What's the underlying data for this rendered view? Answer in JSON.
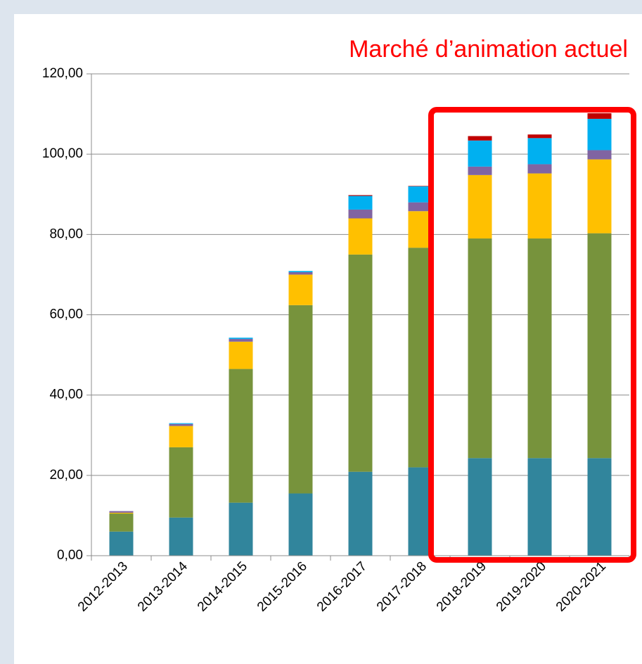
{
  "chart_data": {
    "type": "bar",
    "stacked": true,
    "title": "Marché d’animation actuel",
    "categories": [
      "2012-2013",
      "2013-2014",
      "2014-2015",
      "2015-2016",
      "2016-2017",
      "2017-2018",
      "2018-2019",
      "2019-2020",
      "2020-2021"
    ],
    "series": [
      {
        "color": "#31859c",
        "values": [
          6.0,
          9.5,
          13.2,
          15.5,
          20.9,
          22.0,
          24.3,
          24.3,
          24.3
        ]
      },
      {
        "color": "#77933c",
        "values": [
          4.5,
          17.5,
          33.3,
          46.9,
          54.1,
          54.7,
          54.7,
          54.7,
          56.0
        ]
      },
      {
        "color": "#ffc000",
        "values": [
          0.2,
          5.3,
          6.8,
          7.6,
          9.0,
          9.1,
          15.8,
          16.2,
          18.4
        ]
      },
      {
        "color": "#8064a2",
        "values": [
          0.4,
          0.5,
          0.7,
          0.6,
          2.2,
          2.2,
          2.1,
          2.3,
          2.3
        ]
      },
      {
        "color": "#00b0f0",
        "values": [
          0,
          0.2,
          0.3,
          0.3,
          3.4,
          4.0,
          6.5,
          6.5,
          7.8
        ]
      },
      {
        "color": "#c00000",
        "values": [
          0,
          0,
          0,
          0,
          0.2,
          0.1,
          1.1,
          0.9,
          1.4
        ]
      }
    ],
    "ylim": [
      0,
      120
    ],
    "yticks": [
      {
        "value": 0,
        "label": "0,00"
      },
      {
        "value": 20,
        "label": "20,00"
      },
      {
        "value": 40,
        "label": "40,00"
      },
      {
        "value": 60,
        "label": "60,00"
      },
      {
        "value": 80,
        "label": "80,00"
      },
      {
        "value": 100,
        "label": "100,00"
      },
      {
        "value": 120,
        "label": "120,00"
      }
    ],
    "grid": true
  }
}
